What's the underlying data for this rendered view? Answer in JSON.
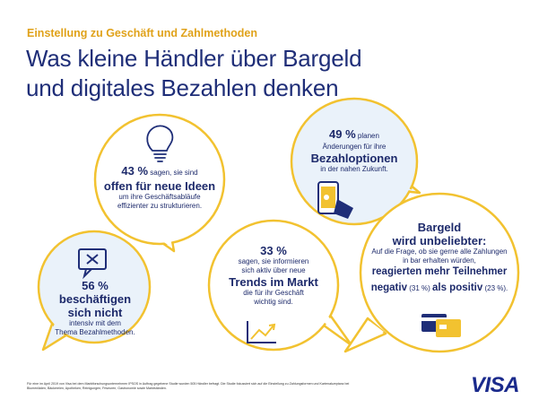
{
  "header": {
    "kicker": "Einstellung zu Geschäft und Zahlmethoden",
    "title_line1": "Was kleine Händler über Bargeld",
    "title_line2": "und digitales Bezahlen denken"
  },
  "colors": {
    "accent": "#f2c230",
    "navy": "#1f2e78",
    "orange": "#e0a21a"
  },
  "bubbles": {
    "ideas": {
      "icon": "lightbulb-icon",
      "pct": "43 %",
      "text1": " sagen, sie sind",
      "bold": "offen für neue Ideen",
      "text2": "um ihre Geschäftsabläufe",
      "text3": "effizienter zu strukturieren."
    },
    "payment": {
      "icon": "smartphone-payment-icon",
      "pct": "49 %",
      "text1": " planen",
      "text2": "Änderungen für ihre",
      "bold": "Bezahloptionen",
      "text3": "in der nahen Zukunft."
    },
    "bezahl": {
      "icon": "message-x-icon",
      "bold1": "56 % beschäftigen",
      "bold2": "sich nicht",
      "text1": "intensiv mit dem",
      "text2": "Thema Bezahlmethoden."
    },
    "trends": {
      "icon": "trend-chart-icon",
      "pct": "33 %",
      "text1": "sagen, sie informieren",
      "text2": "sich aktiv über neue",
      "bold": "Trends im Markt",
      "text3": "die für ihr Geschäft",
      "text4": "wichtig sind."
    },
    "bargeld": {
      "icon": "cards-icon",
      "head1": "Bargeld",
      "head2": "wird unbeliebter:",
      "text1": "Auf die Frage, ob sie gerne alle Zahlungen",
      "text2": "in bar erhalten würden,",
      "bold1": "reagierten mehr Teilnehmer",
      "bold2": "negativ",
      "n1": " (31 %) ",
      "bold3": "als positiv",
      "n2": " (23 %)."
    }
  },
  "footnote": "Für eine im April 2019 von Visa bei dem Marktforschungsunternehmen IPSOS in Auftrag gegebene Studie wurden 505 Händler befragt. Die Studie fokussiert sich auf die Einstellung zu Zahlungsformen und Kartenakzeptanz bei Blumenläden, Bäckereien, Apotheken, Reinigungen, Friseuren, Gastronomie sowie Marktständen.",
  "logo": "VISA"
}
